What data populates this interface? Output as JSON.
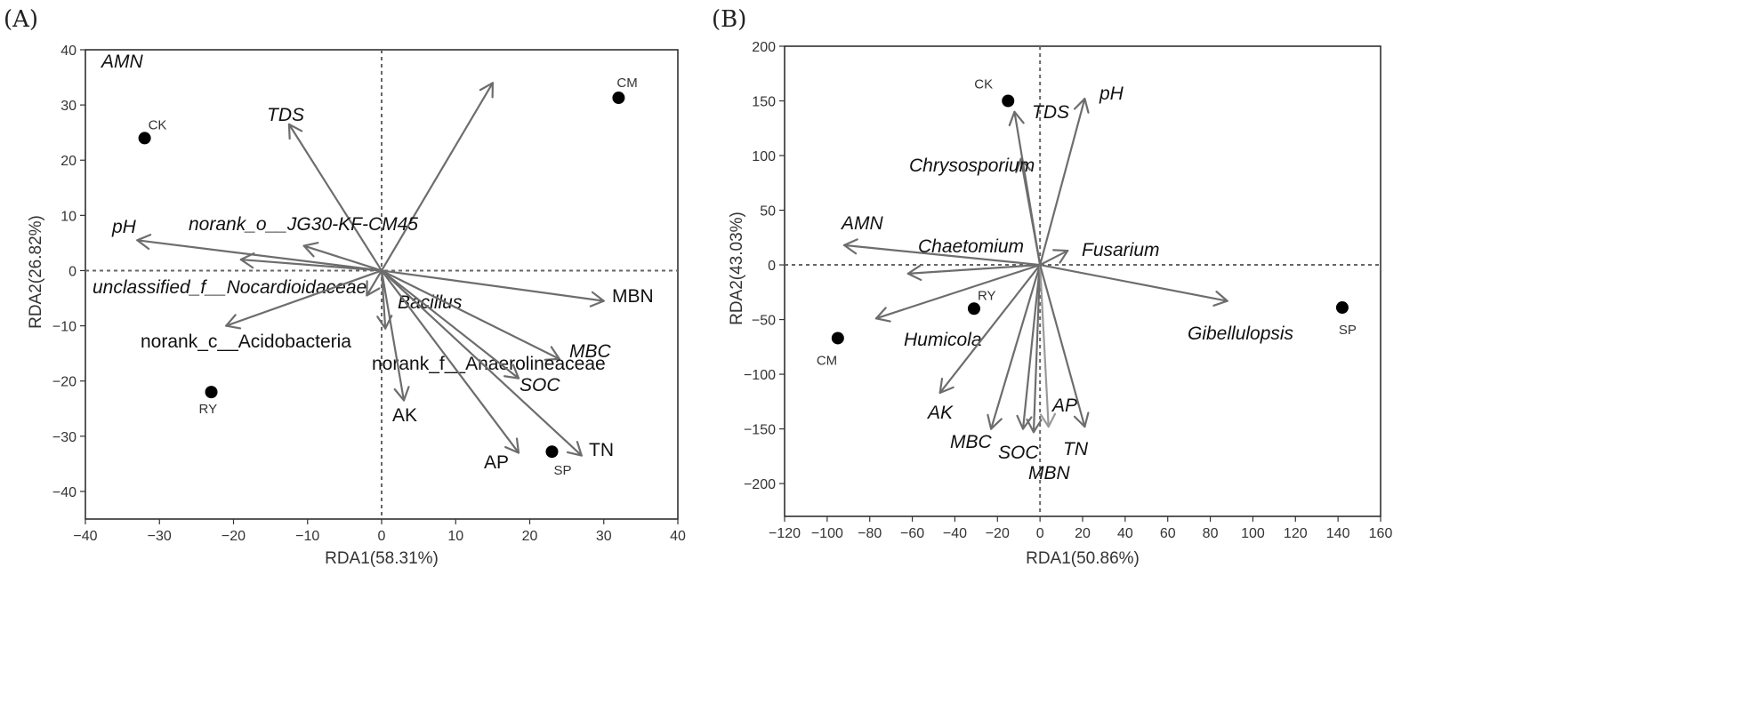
{
  "chart_data": [
    {
      "type": "scatter",
      "panel_label": "(A)",
      "xlabel": "RDA1(58.31%)",
      "ylabel": "RDA2(26.82%)",
      "xlim": [
        -40,
        40
      ],
      "ylim": [
        -45,
        40
      ],
      "xticks": [
        -40,
        -30,
        -20,
        -10,
        0,
        10,
        20,
        30,
        40
      ],
      "yticks": [
        -40,
        -30,
        -20,
        -10,
        0,
        10,
        20,
        30,
        40
      ],
      "points": [
        {
          "label": "CK",
          "x": -32,
          "y": 24
        },
        {
          "label": "CM",
          "x": 32,
          "y": 31.3
        },
        {
          "label": "RY",
          "x": -23,
          "y": -22
        },
        {
          "label": "SP",
          "x": 23,
          "y": -32.8
        }
      ],
      "vectors": [
        {
          "label": "AMN",
          "x": 15,
          "y": 34,
          "italic": true
        },
        {
          "label": "TDS",
          "x": -12.5,
          "y": 26.5,
          "italic": true
        },
        {
          "label": "pH",
          "x": -33,
          "y": 5.5,
          "italic": true
        },
        {
          "label": "norank_o__JG30-KF-CM45",
          "x": -10.5,
          "y": 4.5,
          "italic": true
        },
        {
          "label": "unclassified_f__Nocardioidaceae",
          "x": -19,
          "y": 2,
          "italic": true
        },
        {
          "label": "norank_c__Acidobacteria",
          "x": -21,
          "y": -10,
          "italic": false
        },
        {
          "label": "MBN",
          "x": 30,
          "y": -5.5,
          "italic": false
        },
        {
          "label": "Bacillus",
          "x": 0.5,
          "y": -10.5,
          "italic": true
        },
        {
          "label": "MBC",
          "x": 24,
          "y": -16,
          "italic": true
        },
        {
          "label": "norank_f__Anaerolineaceae",
          "x": -2,
          "y": -4.5,
          "italic": false
        },
        {
          "label": "SOC",
          "x": 18.5,
          "y": -19.5,
          "italic": true
        },
        {
          "label": "AK",
          "x": 3,
          "y": -23.5,
          "italic": false
        },
        {
          "label": "AP",
          "x": 18.5,
          "y": -33,
          "italic": false
        },
        {
          "label": "TN",
          "x": 27,
          "y": -33.5,
          "italic": false
        }
      ]
    },
    {
      "type": "scatter",
      "panel_label": "(B)",
      "xlabel": "RDA1(50.86%)",
      "ylabel": "RDA2(43.03%)",
      "xlim": [
        -120,
        160
      ],
      "ylim": [
        -230,
        200
      ],
      "xticks": [
        -120,
        -100,
        -80,
        -60,
        -40,
        -20,
        0,
        20,
        40,
        60,
        80,
        100,
        120,
        140,
        160
      ],
      "yticks": [
        -200,
        -150,
        -100,
        -50,
        0,
        50,
        100,
        150,
        200
      ],
      "points": [
        {
          "label": "CK",
          "x": -15,
          "y": 150
        },
        {
          "label": "RY",
          "x": -31,
          "y": -40
        },
        {
          "label": "CM",
          "x": -95,
          "y": -67
        },
        {
          "label": "SP",
          "x": 142,
          "y": -39
        }
      ],
      "vectors": [
        {
          "label": "pH",
          "x": 21,
          "y": 152,
          "italic": true
        },
        {
          "label": "TDS",
          "x": -12,
          "y": 140,
          "italic": true
        },
        {
          "label": "Chrysosporium",
          "x": -9,
          "y": 97,
          "italic": true
        },
        {
          "label": "AMN",
          "x": -92,
          "y": 18,
          "italic": true
        },
        {
          "label": "Chaetomium",
          "x": -62,
          "y": -8,
          "italic": true
        },
        {
          "label": "Fusarium",
          "x": 13,
          "y": 13,
          "italic": true
        },
        {
          "label": "Gibellulopsis",
          "x": 88,
          "y": -33,
          "italic": true
        },
        {
          "label": "Humicola",
          "x": -77,
          "y": -49,
          "italic": true
        },
        {
          "label": "AK",
          "x": -47,
          "y": -117,
          "italic": true
        },
        {
          "label": "MBC",
          "x": -23,
          "y": -150,
          "italic": true
        },
        {
          "label": "SOC",
          "x": -8,
          "y": -150,
          "italic": true
        },
        {
          "label": "MBN",
          "x": -3,
          "y": -153,
          "italic": true
        },
        {
          "label": "AP",
          "x": 4,
          "y": -148,
          "italic": true
        },
        {
          "label": "TN",
          "x": 21,
          "y": -148,
          "italic": true
        }
      ]
    }
  ]
}
